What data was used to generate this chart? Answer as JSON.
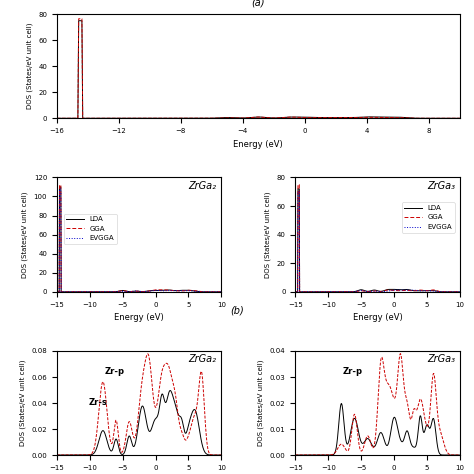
{
  "fig_width": 4.74,
  "fig_height": 4.74,
  "bg_color": "#f0f0f0",
  "panel_a": {
    "title": "(a)",
    "xlabel": "Energy (eV)",
    "ylabel": "DOS (States/eV unit cell)",
    "xlim": [
      -16,
      10
    ],
    "ylim": [
      0,
      80
    ],
    "yticks": [
      0,
      20,
      40,
      60,
      80
    ],
    "xticks": [
      -16,
      -12,
      -8,
      -4,
      0,
      4,
      8
    ],
    "peak_x": -14.5,
    "peak_height": 75
  },
  "panel_b_left": {
    "compound": "ZrGa₂",
    "xlabel": "Energy (eV)",
    "ylabel": "DOS (States/eV unit cell)",
    "xlim": [
      -15,
      10
    ],
    "ylim": [
      0,
      120
    ],
    "yticks": [
      0,
      20,
      40,
      60,
      80,
      100,
      120
    ],
    "xticks": [
      -15,
      -10,
      -5,
      0,
      5,
      10
    ],
    "peak_x": -14.5,
    "lda_peak": 110,
    "gga_peak": 112,
    "evgga_peak": 108
  },
  "panel_b_right": {
    "compound": "ZrGa₃",
    "xlabel": "Energy (eV)",
    "ylabel": "DOS (States/eV unit cell)",
    "xlim": [
      -15,
      10
    ],
    "ylim": [
      0,
      80
    ],
    "yticks": [
      0,
      20,
      40,
      60,
      80
    ],
    "xticks": [
      -15,
      -10,
      -5,
      0,
      5,
      10
    ],
    "peak_x": -14.5,
    "lda_peak": 72,
    "gga_peak": 75,
    "evgga_peak": 70
  },
  "panel_c_left": {
    "compound": "ZrGa₂",
    "xlabel": "",
    "ylabel": "DOS (States/eV unit cell)",
    "xlim": [
      -15,
      10
    ],
    "ylim": [
      0,
      0.08
    ],
    "yticks": [
      0,
      0.02,
      0.04,
      0.06,
      0.08
    ],
    "label_zrp": "Zr-p",
    "label_zrs": "Zr-s"
  },
  "panel_c_right": {
    "compound": "ZrGa₃",
    "xlabel": "",
    "ylabel": "DOS (States/eV unit cell)",
    "xlim": [
      -15,
      10
    ],
    "ylim": [
      0,
      0.04
    ],
    "yticks": [
      0,
      0.01,
      0.02,
      0.03,
      0.04
    ],
    "label_zrp": "Zr-p",
    "label_zrs": ""
  },
  "colors": {
    "lda": "#000000",
    "gga": "#cc0000",
    "evgga": "#0000cc"
  },
  "legend_entries": [
    "LDA",
    "GGA",
    "EVGGA"
  ]
}
